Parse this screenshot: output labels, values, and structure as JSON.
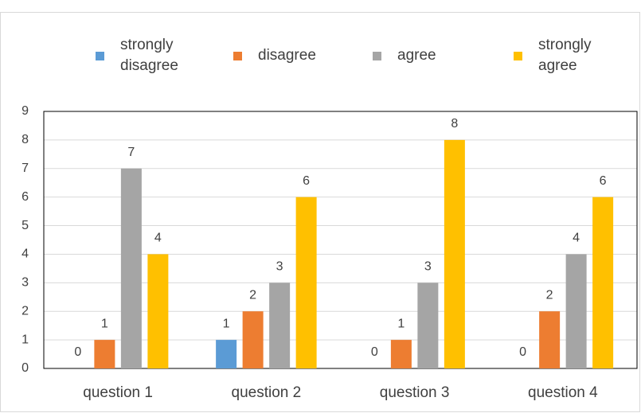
{
  "chart_data": {
    "type": "bar",
    "categories": [
      "question 1",
      "question 2",
      "question 3",
      "question 4"
    ],
    "series": [
      {
        "name": "strongly disagree",
        "color": "#5b9bd5",
        "values": [
          0,
          1,
          0,
          0
        ]
      },
      {
        "name": "disagree",
        "color": "#ed7d31",
        "values": [
          1,
          2,
          1,
          2
        ]
      },
      {
        "name": "agree",
        "color": "#a5a5a5",
        "values": [
          7,
          3,
          3,
          4
        ]
      },
      {
        "name": "strongly agree",
        "color": "#ffc000",
        "values": [
          4,
          6,
          8,
          6
        ]
      }
    ],
    "ylim": [
      0,
      9
    ],
    "yticks": [
      0,
      1,
      2,
      3,
      4,
      5,
      6,
      7,
      8,
      9
    ],
    "grid": true
  }
}
